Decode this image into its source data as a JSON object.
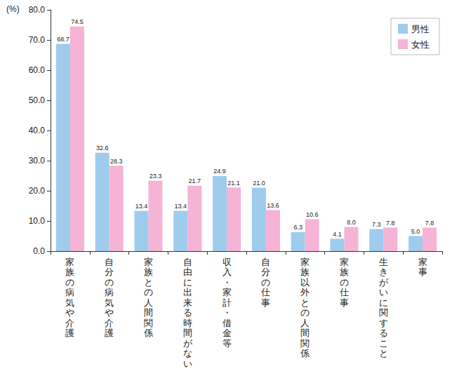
{
  "chart_data": {
    "type": "bar",
    "y_label": "(%)",
    "categories": [
      "家族の病気や介護",
      "自分の病気や介護",
      "家族との人間関係",
      "自由に出来る時間がない",
      "収入・家計・借金等",
      "自分の仕事",
      "家族以外との人間関係",
      "家族の仕事",
      "生きがいに関すること",
      "家事"
    ],
    "series": [
      {
        "name": "男性",
        "color": "#9fcbed",
        "values": [
          68.7,
          32.6,
          13.4,
          13.4,
          24.9,
          21.0,
          6.3,
          4.1,
          7.3,
          5.0
        ],
        "value_labels": [
          "68.7",
          "32.6",
          "13.4",
          "13.4",
          "24.9",
          "21.0",
          "6.3",
          "4.1",
          "7.3",
          "5.0"
        ]
      },
      {
        "name": "女性",
        "color": "#f5b3d5",
        "values": [
          74.5,
          28.3,
          23.3,
          21.7,
          21.1,
          13.6,
          10.6,
          8.0,
          7.8,
          7.8
        ],
        "value_labels": [
          "74.5",
          "28.3",
          "23.3",
          "21.7",
          "21.1",
          "13.6",
          "10.6",
          "8.0",
          "7.8",
          "7.8"
        ]
      }
    ],
    "ylim": [
      0,
      80
    ],
    "yticks": [
      {
        "value": 0,
        "label": "0.0"
      },
      {
        "value": 10,
        "label": "10.0"
      },
      {
        "value": 20,
        "label": "20.0"
      },
      {
        "value": 30,
        "label": "30.0"
      },
      {
        "value": 40,
        "label": "40.0"
      },
      {
        "value": 50,
        "label": "50.0"
      },
      {
        "value": 60,
        "label": "60.0"
      },
      {
        "value": 70,
        "label": "70.0"
      },
      {
        "value": 80,
        "label": "80.0"
      }
    ],
    "grid": false,
    "legend": "upper right",
    "data_labels": true
  }
}
